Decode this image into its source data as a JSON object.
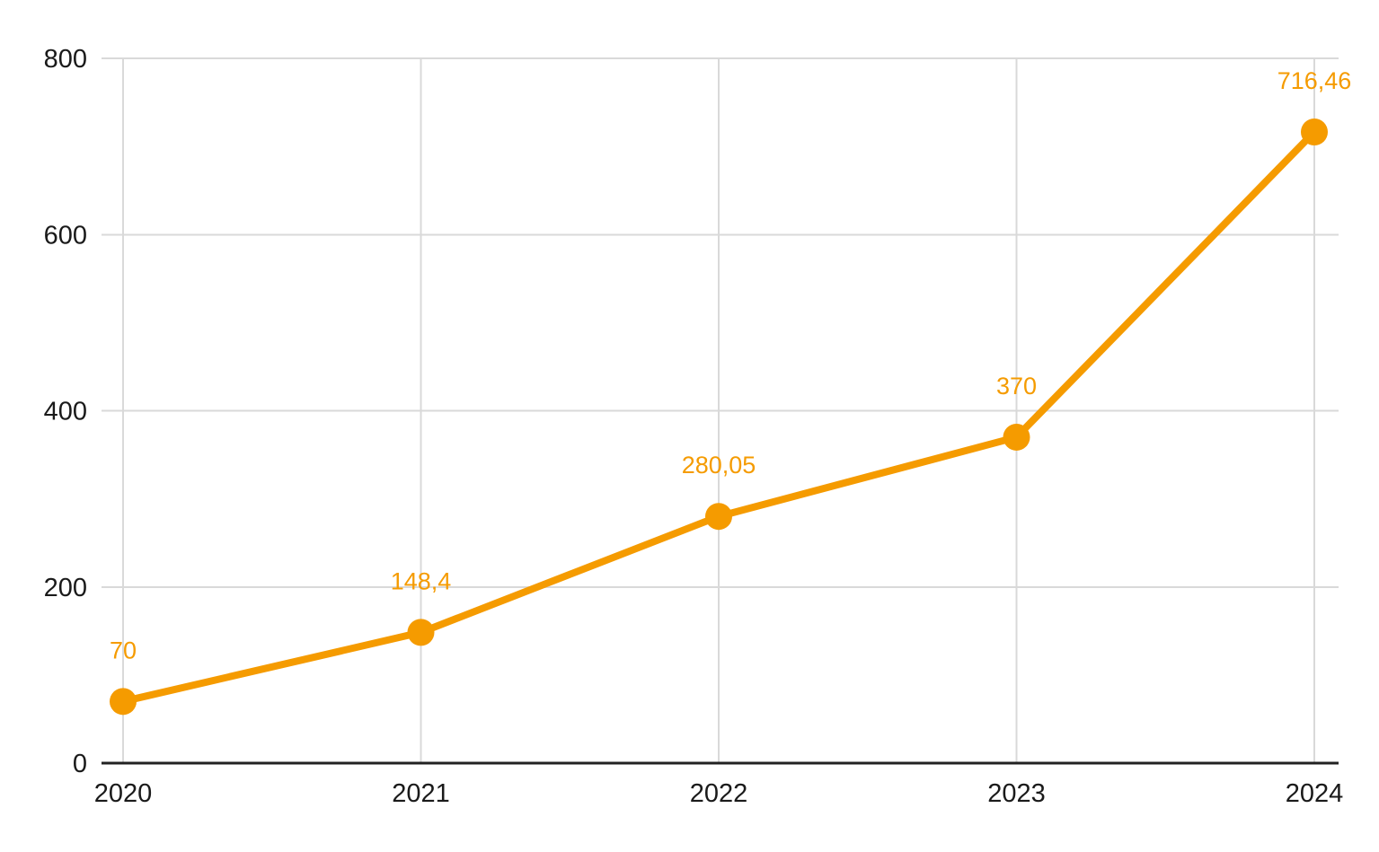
{
  "chart_data": {
    "type": "line",
    "title": "",
    "xlabel": "",
    "ylabel": "",
    "categories": [
      "2020",
      "2021",
      "2022",
      "2023",
      "2024"
    ],
    "series": [
      {
        "name": "",
        "color": "#F59B00",
        "values": [
          70,
          148.4,
          280.05,
          370,
          716.46
        ],
        "point_labels": [
          "70",
          "148,4",
          "280,05",
          "370",
          "716,46"
        ]
      }
    ],
    "ylim": [
      0,
      800
    ],
    "yticks": [
      0,
      200,
      400,
      600,
      800
    ],
    "ytick_labels": [
      "0",
      "200",
      "400",
      "600",
      "800"
    ],
    "grid": true,
    "legend_position": "none",
    "marker": "circle",
    "colors": {
      "series": "#F59B00",
      "gridline": "#D9D9D9",
      "axis_line": "#212121",
      "tick_label": "#1A1A1A",
      "background": "#FFFFFF"
    }
  }
}
